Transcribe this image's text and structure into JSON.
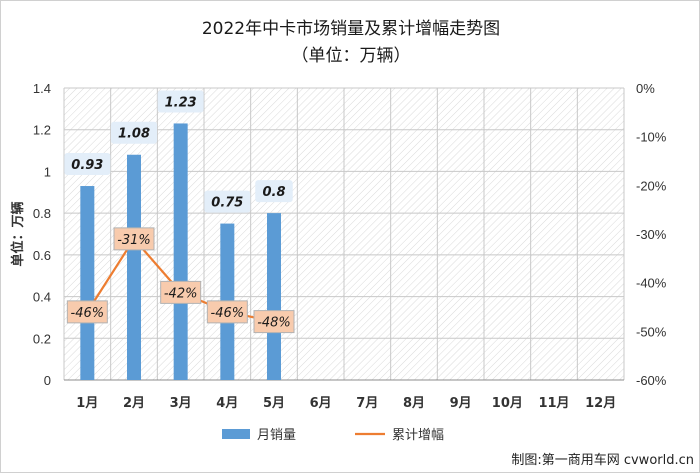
{
  "chart_data": {
    "type": "bar+line",
    "title_line1": "2022年中卡市场销量及累计增幅走势图",
    "title_line2": "（单位：万辆）",
    "ylabel": "单位：万辆",
    "categories": [
      "1月",
      "2月",
      "3月",
      "4月",
      "5月",
      "6月",
      "7月",
      "8月",
      "9月",
      "10月",
      "11月",
      "12月"
    ],
    "series": [
      {
        "name": "月销量",
        "kind": "bar",
        "axis": "left",
        "color": "#5b9bd5",
        "values": [
          0.93,
          1.08,
          1.23,
          0.75,
          0.8,
          null,
          null,
          null,
          null,
          null,
          null,
          null
        ],
        "labels": [
          "0.93",
          "1.08",
          "1.23",
          "0.75",
          "0.8"
        ]
      },
      {
        "name": "累计增幅",
        "kind": "line",
        "axis": "right",
        "color": "#ed7d31",
        "values": [
          -46,
          -31,
          -42,
          -46,
          -48,
          null,
          null,
          null,
          null,
          null,
          null,
          null
        ],
        "labels": [
          "-46%",
          "-31%",
          "-42%",
          "-46%",
          "-48%"
        ]
      }
    ],
    "y_left": {
      "min": 0,
      "max": 1.4,
      "ticks": [
        "0",
        "0.2",
        "0.4",
        "0.6",
        "0.8",
        "1",
        "1.2",
        "1.4"
      ]
    },
    "y_right": {
      "min": -60,
      "max": 0,
      "ticks": [
        "0%",
        "-10%",
        "-20%",
        "-30%",
        "-40%",
        "-50%",
        "-60%"
      ]
    },
    "grid": true,
    "legend": "bottom"
  },
  "credit": "制图:第一商用车网 cvworld.cn"
}
